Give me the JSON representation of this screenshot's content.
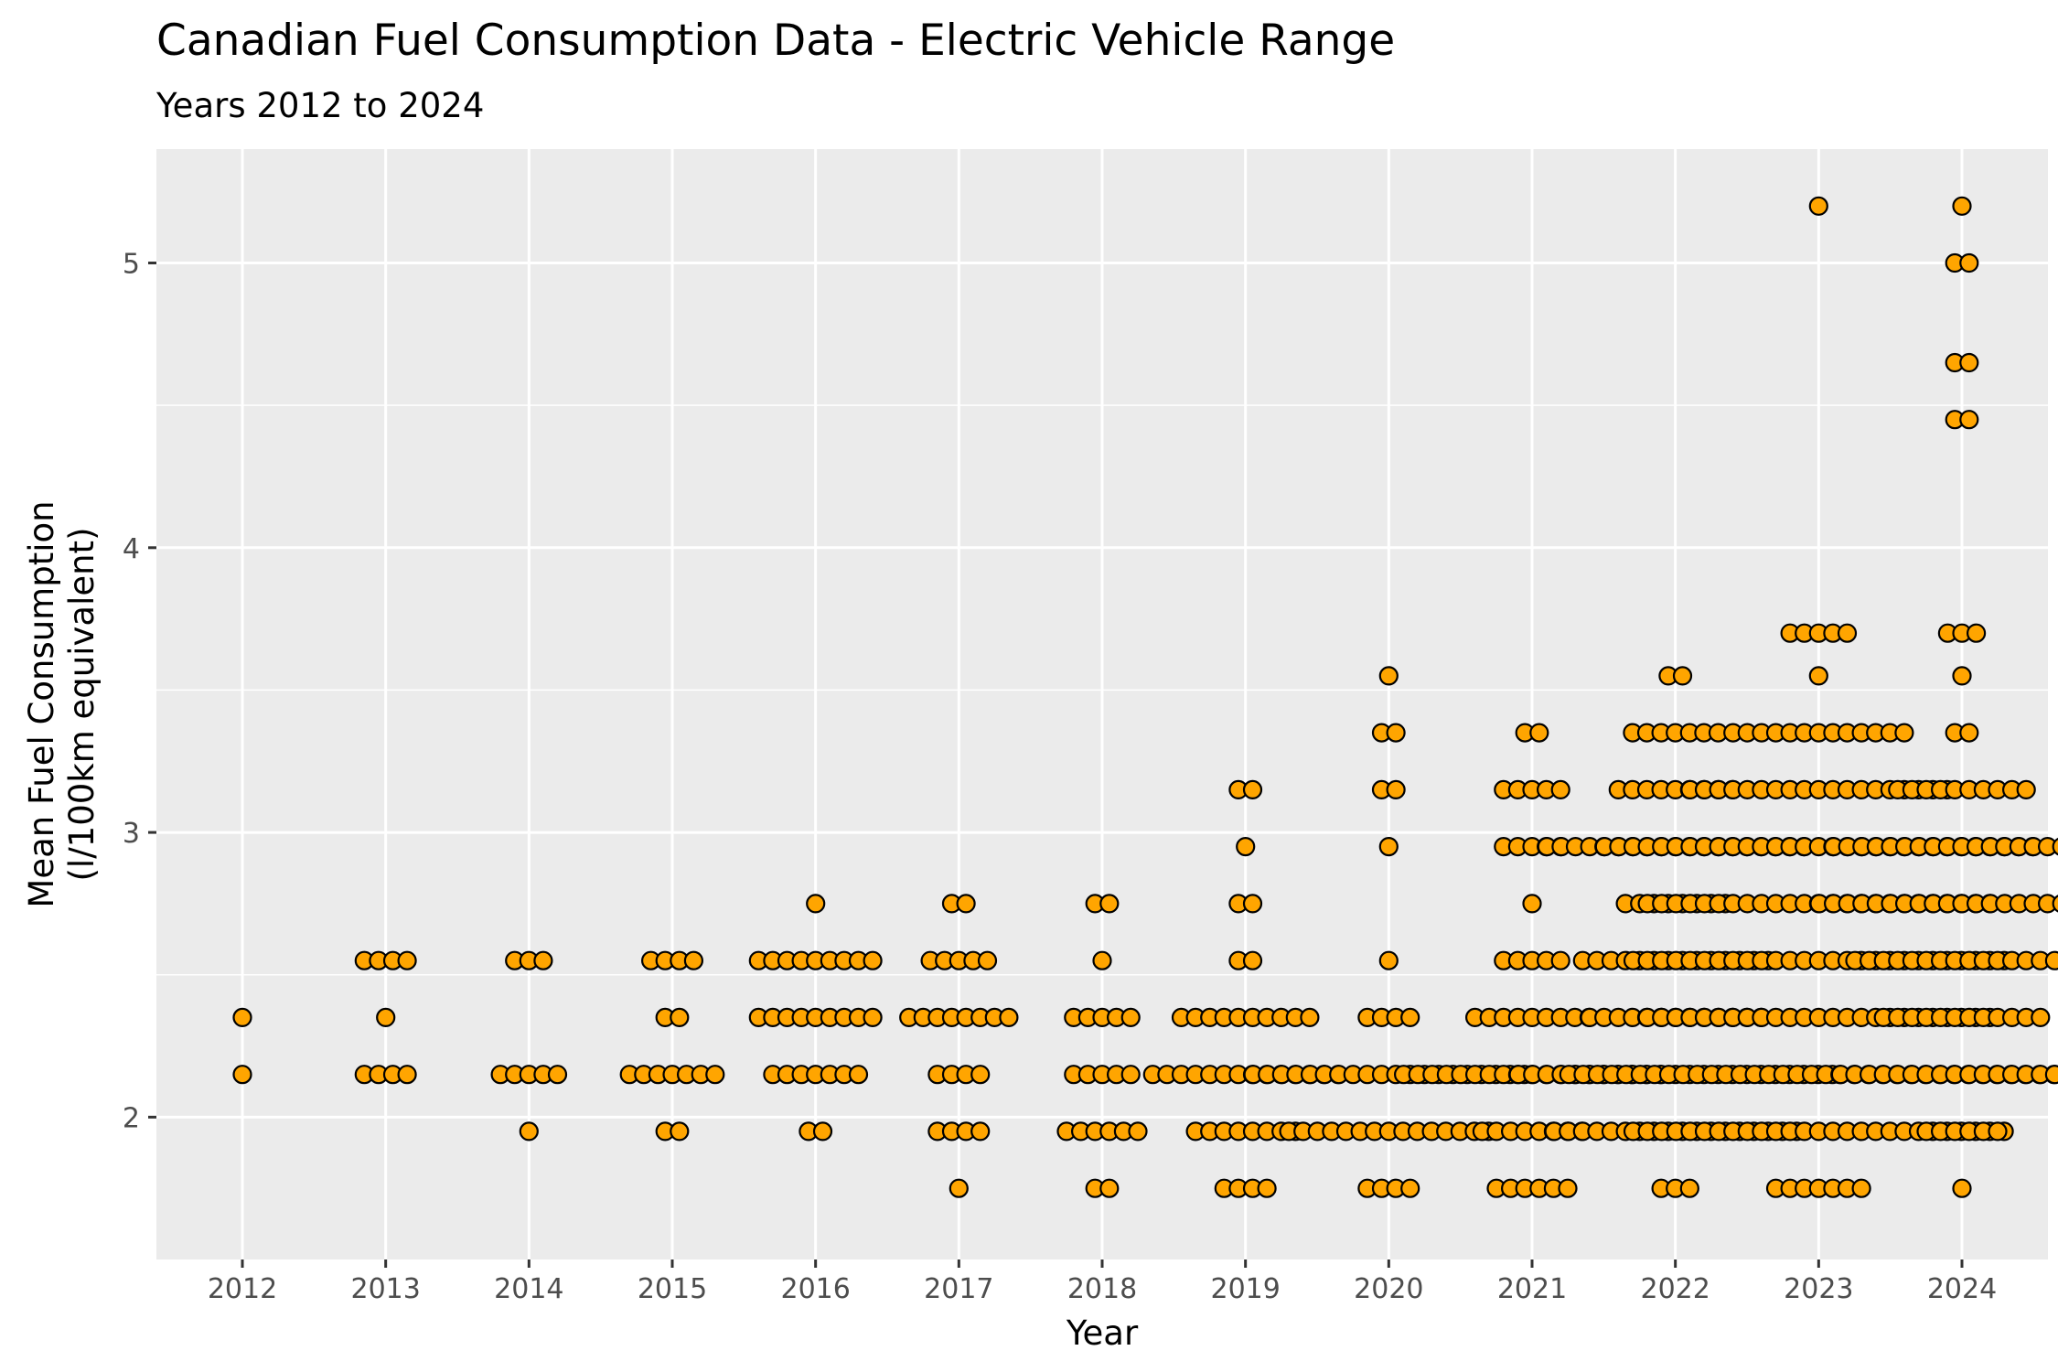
{
  "chart_data": {
    "type": "scatter",
    "title": "Canadian Fuel Consumption Data - Electric Vehicle Range",
    "subtitle": "Years 2012 to 2024",
    "xlabel": "Year",
    "ylabel_lines": [
      "Mean Fuel Consumption",
      "(l/100km equivalent)"
    ],
    "x_ticks": [
      2012,
      2013,
      2014,
      2015,
      2016,
      2017,
      2018,
      2019,
      2020,
      2021,
      2022,
      2023,
      2024
    ],
    "y_ticks": [
      2,
      3,
      4,
      5
    ],
    "ylim": [
      1.5,
      5.4
    ],
    "xlim": [
      2011.4,
      2024.6
    ],
    "grid": true,
    "point_fill": "#FFA500",
    "point_stroke": "#000000",
    "panel_background": "#EBEBEB",
    "jitter_note_free": true,
    "points_by_year": [
      {
        "year": 2012,
        "values": [
          2.35,
          2.15
        ]
      },
      {
        "year": 2013,
        "values": [
          2.55,
          2.55,
          2.55,
          2.55,
          2.35,
          2.15,
          2.15,
          2.15,
          2.15
        ]
      },
      {
        "year": 2014,
        "values": [
          2.55,
          2.55,
          2.55,
          2.15,
          2.15,
          2.15,
          2.15,
          2.15,
          1.95
        ]
      },
      {
        "year": 2015,
        "values": [
          2.55,
          2.55,
          2.55,
          2.55,
          2.35,
          2.35,
          2.15,
          2.15,
          2.15,
          2.15,
          2.15,
          2.15,
          2.15,
          1.95,
          1.95
        ]
      },
      {
        "year": 2016,
        "values": [
          2.75,
          2.55,
          2.55,
          2.55,
          2.55,
          2.55,
          2.55,
          2.55,
          2.55,
          2.55,
          2.35,
          2.35,
          2.35,
          2.35,
          2.35,
          2.35,
          2.35,
          2.35,
          2.35,
          2.15,
          2.15,
          2.15,
          2.15,
          2.15,
          2.15,
          2.15,
          1.95,
          1.95
        ]
      },
      {
        "year": 2017,
        "values": [
          2.75,
          2.75,
          2.55,
          2.55,
          2.55,
          2.55,
          2.55,
          2.35,
          2.35,
          2.35,
          2.35,
          2.35,
          2.35,
          2.35,
          2.35,
          2.15,
          2.15,
          2.15,
          2.15,
          1.95,
          1.95,
          1.95,
          1.95,
          1.75
        ]
      },
      {
        "year": 2018,
        "values": [
          2.75,
          2.75,
          2.55,
          2.35,
          2.35,
          2.35,
          2.35,
          2.35,
          2.15,
          2.15,
          2.15,
          2.15,
          2.15,
          1.95,
          1.95,
          1.95,
          1.95,
          1.95,
          1.95,
          1.75,
          1.75
        ]
      },
      {
        "year": 2019,
        "values": [
          3.15,
          3.15,
          2.95,
          2.75,
          2.75,
          2.55,
          2.55,
          2.35,
          2.35,
          2.35,
          2.35,
          2.35,
          2.35,
          2.35,
          2.35,
          2.35,
          2.35,
          2.15,
          2.15,
          2.15,
          2.15,
          2.15,
          2.15,
          2.15,
          2.15,
          2.15,
          2.15,
          2.15,
          2.15,
          2.15,
          2.15,
          1.95,
          1.95,
          1.95,
          1.95,
          1.95,
          1.95,
          1.95,
          1.95,
          1.75,
          1.75,
          1.75,
          1.75
        ]
      },
      {
        "year": 2020,
        "values": [
          3.55,
          3.35,
          3.35,
          3.15,
          3.15,
          2.95,
          2.55,
          2.35,
          2.35,
          2.35,
          2.35,
          2.15,
          2.15,
          2.15,
          2.15,
          2.15,
          2.15,
          2.15,
          2.15,
          2.15,
          2.15,
          2.15,
          2.15,
          2.15,
          2.15,
          2.15,
          2.15,
          2.15,
          2.15,
          2.15,
          2.15,
          1.95,
          1.95,
          1.95,
          1.95,
          1.95,
          1.95,
          1.95,
          1.95,
          1.95,
          1.95,
          1.95,
          1.95,
          1.95,
          1.95,
          1.95,
          1.75,
          1.75,
          1.75,
          1.75
        ]
      },
      {
        "year": 2021,
        "values": [
          3.35,
          3.35,
          3.15,
          3.15,
          3.15,
          3.15,
          3.15,
          2.95,
          2.95,
          2.95,
          2.95,
          2.95,
          2.75,
          2.55,
          2.55,
          2.55,
          2.55,
          2.55,
          2.35,
          2.35,
          2.35,
          2.35,
          2.35,
          2.35,
          2.35,
          2.35,
          2.35,
          2.15,
          2.15,
          2.15,
          2.15,
          2.15,
          2.15,
          2.15,
          2.15,
          2.15,
          2.15,
          2.15,
          2.15,
          2.15,
          2.15,
          2.15,
          2.15,
          2.15,
          2.15,
          2.15,
          1.95,
          1.95,
          1.95,
          1.95,
          1.95,
          1.95,
          1.95,
          1.95,
          1.75,
          1.75,
          1.75,
          1.75,
          1.75,
          1.75
        ]
      },
      {
        "year": 2022,
        "values": [
          3.55,
          3.55,
          3.35,
          3.35,
          3.35,
          3.35,
          3.35,
          3.35,
          3.35,
          3.15,
          3.15,
          3.15,
          3.15,
          3.15,
          3.15,
          3.15,
          3.15,
          3.15,
          2.95,
          2.95,
          2.95,
          2.95,
          2.95,
          2.95,
          2.95,
          2.95,
          2.95,
          2.95,
          2.95,
          2.95,
          2.95,
          2.95,
          2.95,
          2.95,
          2.95,
          2.95,
          2.95,
          2.75,
          2.75,
          2.75,
          2.75,
          2.75,
          2.75,
          2.75,
          2.75,
          2.55,
          2.55,
          2.55,
          2.55,
          2.55,
          2.55,
          2.55,
          2.55,
          2.55,
          2.55,
          2.55,
          2.55,
          2.55,
          2.55,
          2.35,
          2.35,
          2.35,
          2.35,
          2.35,
          2.35,
          2.35,
          2.35,
          2.35,
          2.35,
          2.35,
          2.35,
          2.35,
          2.15,
          2.15,
          2.15,
          2.15,
          2.15,
          2.15,
          2.15,
          2.15,
          2.15,
          2.15,
          2.15,
          2.15,
          2.15,
          2.15,
          2.15,
          2.15,
          2.15,
          2.15,
          2.15,
          2.15,
          2.15,
          2.15,
          2.15,
          1.95,
          1.95,
          1.95,
          1.95,
          1.95,
          1.95,
          1.95,
          1.95,
          1.95,
          1.95,
          1.95,
          1.95,
          1.95,
          1.95,
          1.95,
          1.95,
          1.95,
          1.95,
          1.75,
          1.75,
          1.75
        ]
      },
      {
        "year": 2023,
        "values": [
          5.2,
          3.7,
          3.7,
          3.7,
          3.7,
          3.7,
          3.55,
          3.35,
          3.35,
          3.35,
          3.35,
          3.35,
          3.35,
          3.35,
          3.35,
          3.35,
          3.35,
          3.35,
          3.35,
          3.35,
          3.15,
          3.15,
          3.15,
          3.15,
          3.15,
          3.15,
          3.15,
          3.15,
          3.15,
          3.15,
          3.15,
          3.15,
          3.15,
          3.15,
          3.15,
          3.15,
          3.15,
          3.15,
          3.15,
          2.95,
          2.95,
          2.95,
          2.95,
          2.95,
          2.95,
          2.95,
          2.95,
          2.95,
          2.95,
          2.95,
          2.95,
          2.95,
          2.95,
          2.95,
          2.95,
          2.95,
          2.95,
          2.95,
          2.95,
          2.95,
          2.95,
          2.95,
          2.95,
          2.95,
          2.95,
          2.95,
          2.95,
          2.95,
          2.95,
          2.95,
          2.75,
          2.75,
          2.75,
          2.75,
          2.75,
          2.75,
          2.75,
          2.75,
          2.75,
          2.75,
          2.75,
          2.75,
          2.75,
          2.75,
          2.75,
          2.75,
          2.75,
          2.75,
          2.75,
          2.75,
          2.75,
          2.75,
          2.75,
          2.75,
          2.75,
          2.55,
          2.55,
          2.55,
          2.55,
          2.55,
          2.55,
          2.55,
          2.55,
          2.55,
          2.55,
          2.55,
          2.55,
          2.55,
          2.55,
          2.55,
          2.55,
          2.55,
          2.55,
          2.55,
          2.55,
          2.55,
          2.55,
          2.55,
          2.55,
          2.55,
          2.55,
          2.55,
          2.35,
          2.35,
          2.35,
          2.35,
          2.35,
          2.35,
          2.35,
          2.35,
          2.35,
          2.35,
          2.35,
          2.35,
          2.35,
          2.35,
          2.35,
          2.35,
          2.35,
          2.35,
          2.35,
          2.35,
          2.35,
          2.35,
          2.35,
          2.35,
          2.35,
          2.15,
          2.15,
          2.15,
          2.15,
          2.15,
          2.15,
          2.15,
          2.15,
          2.15,
          2.15,
          2.15,
          2.15,
          2.15,
          2.15,
          2.15,
          2.15,
          2.15,
          2.15,
          2.15,
          2.15,
          2.15,
          2.15,
          2.15,
          2.15,
          2.15,
          2.15,
          2.15,
          2.15,
          2.15,
          2.15,
          2.15,
          2.15,
          2.15,
          2.15,
          2.15,
          2.15,
          1.95,
          1.95,
          1.95,
          1.95,
          1.95,
          1.95,
          1.95,
          1.95,
          1.95,
          1.95,
          1.95,
          1.95,
          1.95,
          1.95,
          1.95,
          1.95,
          1.95,
          1.95,
          1.95,
          1.95,
          1.95,
          1.95,
          1.95,
          1.95,
          1.95,
          1.95,
          1.95,
          1.75,
          1.75,
          1.75,
          1.75,
          1.75,
          1.75,
          1.75
        ]
      },
      {
        "year": 2024,
        "values": [
          5.2,
          5.0,
          5.0,
          4.65,
          4.65,
          4.45,
          4.45,
          3.7,
          3.7,
          3.7,
          3.55,
          3.35,
          3.35,
          3.15,
          3.15,
          3.15,
          3.15,
          3.15,
          3.15,
          3.15,
          3.15,
          3.15,
          3.15,
          2.95,
          2.95,
          2.95,
          2.95,
          2.95,
          2.95,
          2.95,
          2.95,
          2.95,
          2.95,
          2.95,
          2.95,
          2.95,
          2.95,
          2.95,
          2.95,
          2.95,
          2.95,
          2.95,
          2.75,
          2.75,
          2.75,
          2.75,
          2.75,
          2.75,
          2.75,
          2.75,
          2.75,
          2.75,
          2.75,
          2.75,
          2.75,
          2.75,
          2.75,
          2.75,
          2.75,
          2.75,
          2.75,
          2.75,
          2.75,
          2.55,
          2.55,
          2.55,
          2.55,
          2.55,
          2.55,
          2.55,
          2.55,
          2.55,
          2.55,
          2.55,
          2.55,
          2.55,
          2.55,
          2.55,
          2.55,
          2.35,
          2.35,
          2.35,
          2.35,
          2.35,
          2.35,
          2.35,
          2.35,
          2.35,
          2.35,
          2.35,
          2.35,
          2.15,
          2.15,
          2.15,
          2.15,
          2.15,
          2.15,
          2.15,
          2.15,
          2.15,
          2.15,
          2.15,
          2.15,
          2.15,
          2.15,
          2.15,
          2.15,
          2.15,
          2.15,
          1.95,
          1.95,
          1.95,
          1.95,
          1.95,
          1.95,
          1.75
        ]
      }
    ]
  }
}
